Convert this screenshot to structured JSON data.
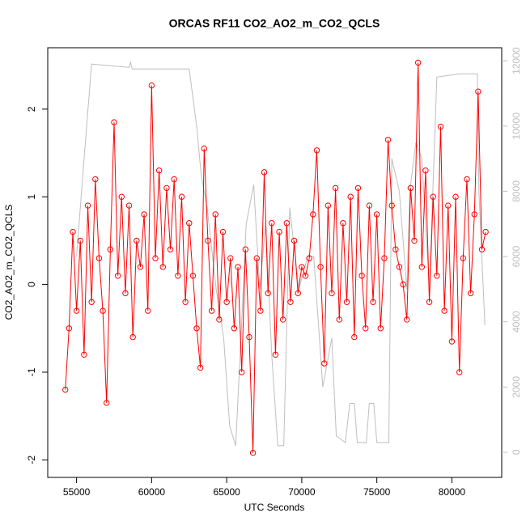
{
  "chart_data": {
    "type": "line",
    "title": "ORCAS RF11 CO2_AO2_m_CO2_QCLS",
    "x_label": "UTC Seconds",
    "y_label": "CO2_AO2_m_CO2_QCLS",
    "xlim": [
      53080,
      83320
    ],
    "ylim": [
      -2.2,
      2.7
    ],
    "y2lim": [
      -770,
      12400
    ],
    "xticks": [
      55000,
      60000,
      65000,
      70000,
      75000,
      80000
    ],
    "yticks": [
      -2,
      -1,
      0,
      1,
      2
    ],
    "y2ticks": [
      0,
      2000,
      4000,
      6000,
      8000,
      10000,
      12000
    ],
    "series": [
      {
        "color": "#bebebe",
        "axis": "y2",
        "x": [
          55000,
          55500,
          56000,
          58500,
          58600,
          58700,
          62500,
          63000,
          63300,
          63700,
          64300,
          64800,
          65200,
          65600,
          66000,
          66300,
          66800,
          67200,
          67600,
          68000,
          68400,
          68800,
          69200,
          69800,
          70400,
          70800,
          71400,
          72000,
          72300,
          72900,
          73200,
          73500,
          73700,
          74300,
          74500,
          74800,
          75000,
          75800,
          76000,
          76500,
          77000,
          77200,
          77600,
          78000,
          78500,
          79000,
          80500,
          81000,
          81700,
          81800,
          82200
        ],
        "values": [
          6000,
          9000,
          11900,
          11800,
          11950,
          11750,
          11750,
          10000,
          8500,
          7500,
          5000,
          3500,
          800,
          200,
          4000,
          7000,
          8200,
          5000,
          7000,
          3000,
          200,
          200,
          7500,
          5000,
          6000,
          6000,
          2000,
          3500,
          500,
          300,
          1500,
          1500,
          300,
          300,
          1500,
          1500,
          300,
          300,
          9000,
          8000,
          5000,
          8000,
          9500,
          9000,
          5000,
          11500,
          11600,
          11600,
          11600,
          8000,
          3900
        ]
      },
      {
        "color": "#ff0000",
        "x": [
          54250,
          54500,
          54750,
          55000,
          55250,
          55500,
          55750,
          56000,
          56250,
          56500,
          56750,
          57000,
          57250,
          57500,
          57750,
          58000,
          58250,
          58500,
          58750,
          59000,
          59250,
          59500,
          59750,
          60000,
          60250,
          60500,
          60750,
          61000,
          61250,
          61500,
          61750,
          62000,
          62250,
          62500,
          62750,
          63000,
          63250,
          63500,
          63750,
          64000,
          64250,
          64500,
          64750,
          65000,
          65250,
          65500,
          65750,
          66000,
          66250,
          66500,
          66750,
          67000,
          67250,
          67500,
          67750,
          68000,
          68250,
          68500,
          68750,
          69000,
          69250,
          69500,
          69750,
          70000,
          70250,
          70500,
          70750,
          71000,
          71250,
          71500,
          71750,
          72000,
          72250,
          72500,
          72750,
          73000,
          73250,
          73500,
          73750,
          74000,
          74250,
          74500,
          74750,
          75000,
          75250,
          75500,
          75750,
          76000,
          76250,
          76500,
          76750,
          77000,
          77250,
          77500,
          77750,
          78000,
          78250,
          78500,
          78750,
          79000,
          79250,
          79500,
          79750,
          80000,
          80250,
          80500,
          80750,
          81000,
          81250,
          81500,
          81750,
          82000,
          82250
        ],
        "values": [
          -1.2,
          -0.5,
          0.6,
          -0.3,
          0.5,
          -0.8,
          0.9,
          -0.2,
          1.2,
          0.3,
          -0.3,
          -1.35,
          0.4,
          1.85,
          0.1,
          1.0,
          -0.1,
          0.9,
          -0.6,
          0.5,
          0.2,
          0.8,
          -0.3,
          2.27,
          0.3,
          1.3,
          0.2,
          1.1,
          0.4,
          1.2,
          0.1,
          1.0,
          -0.2,
          0.7,
          0.1,
          -0.5,
          -0.95,
          1.55,
          0.5,
          -0.3,
          0.8,
          -0.4,
          0.6,
          -0.2,
          0.3,
          -0.5,
          0.2,
          -1.0,
          0.4,
          -0.6,
          -1.92,
          0.3,
          -0.3,
          1.28,
          -0.1,
          0.7,
          -0.8,
          0.6,
          -0.4,
          0.7,
          -0.2,
          0.5,
          -0.1,
          0.2,
          0.1,
          0.3,
          0.8,
          1.53,
          0.2,
          -0.9,
          0.9,
          -0.1,
          1.1,
          -0.4,
          0.7,
          -0.2,
          1.0,
          -0.6,
          1.1,
          0.1,
          -0.5,
          0.9,
          -0.2,
          0.8,
          -0.5,
          0.3,
          1.65,
          0.9,
          0.4,
          0.2,
          0.0,
          -0.4,
          1.1,
          0.5,
          2.53,
          0.2,
          1.3,
          -0.2,
          1.0,
          0.1,
          1.8,
          -0.3,
          0.9,
          -0.65,
          1.0,
          -1.0,
          0.3,
          1.2,
          -0.1,
          0.8,
          2.2,
          0.4,
          0.6
        ]
      }
    ]
  }
}
